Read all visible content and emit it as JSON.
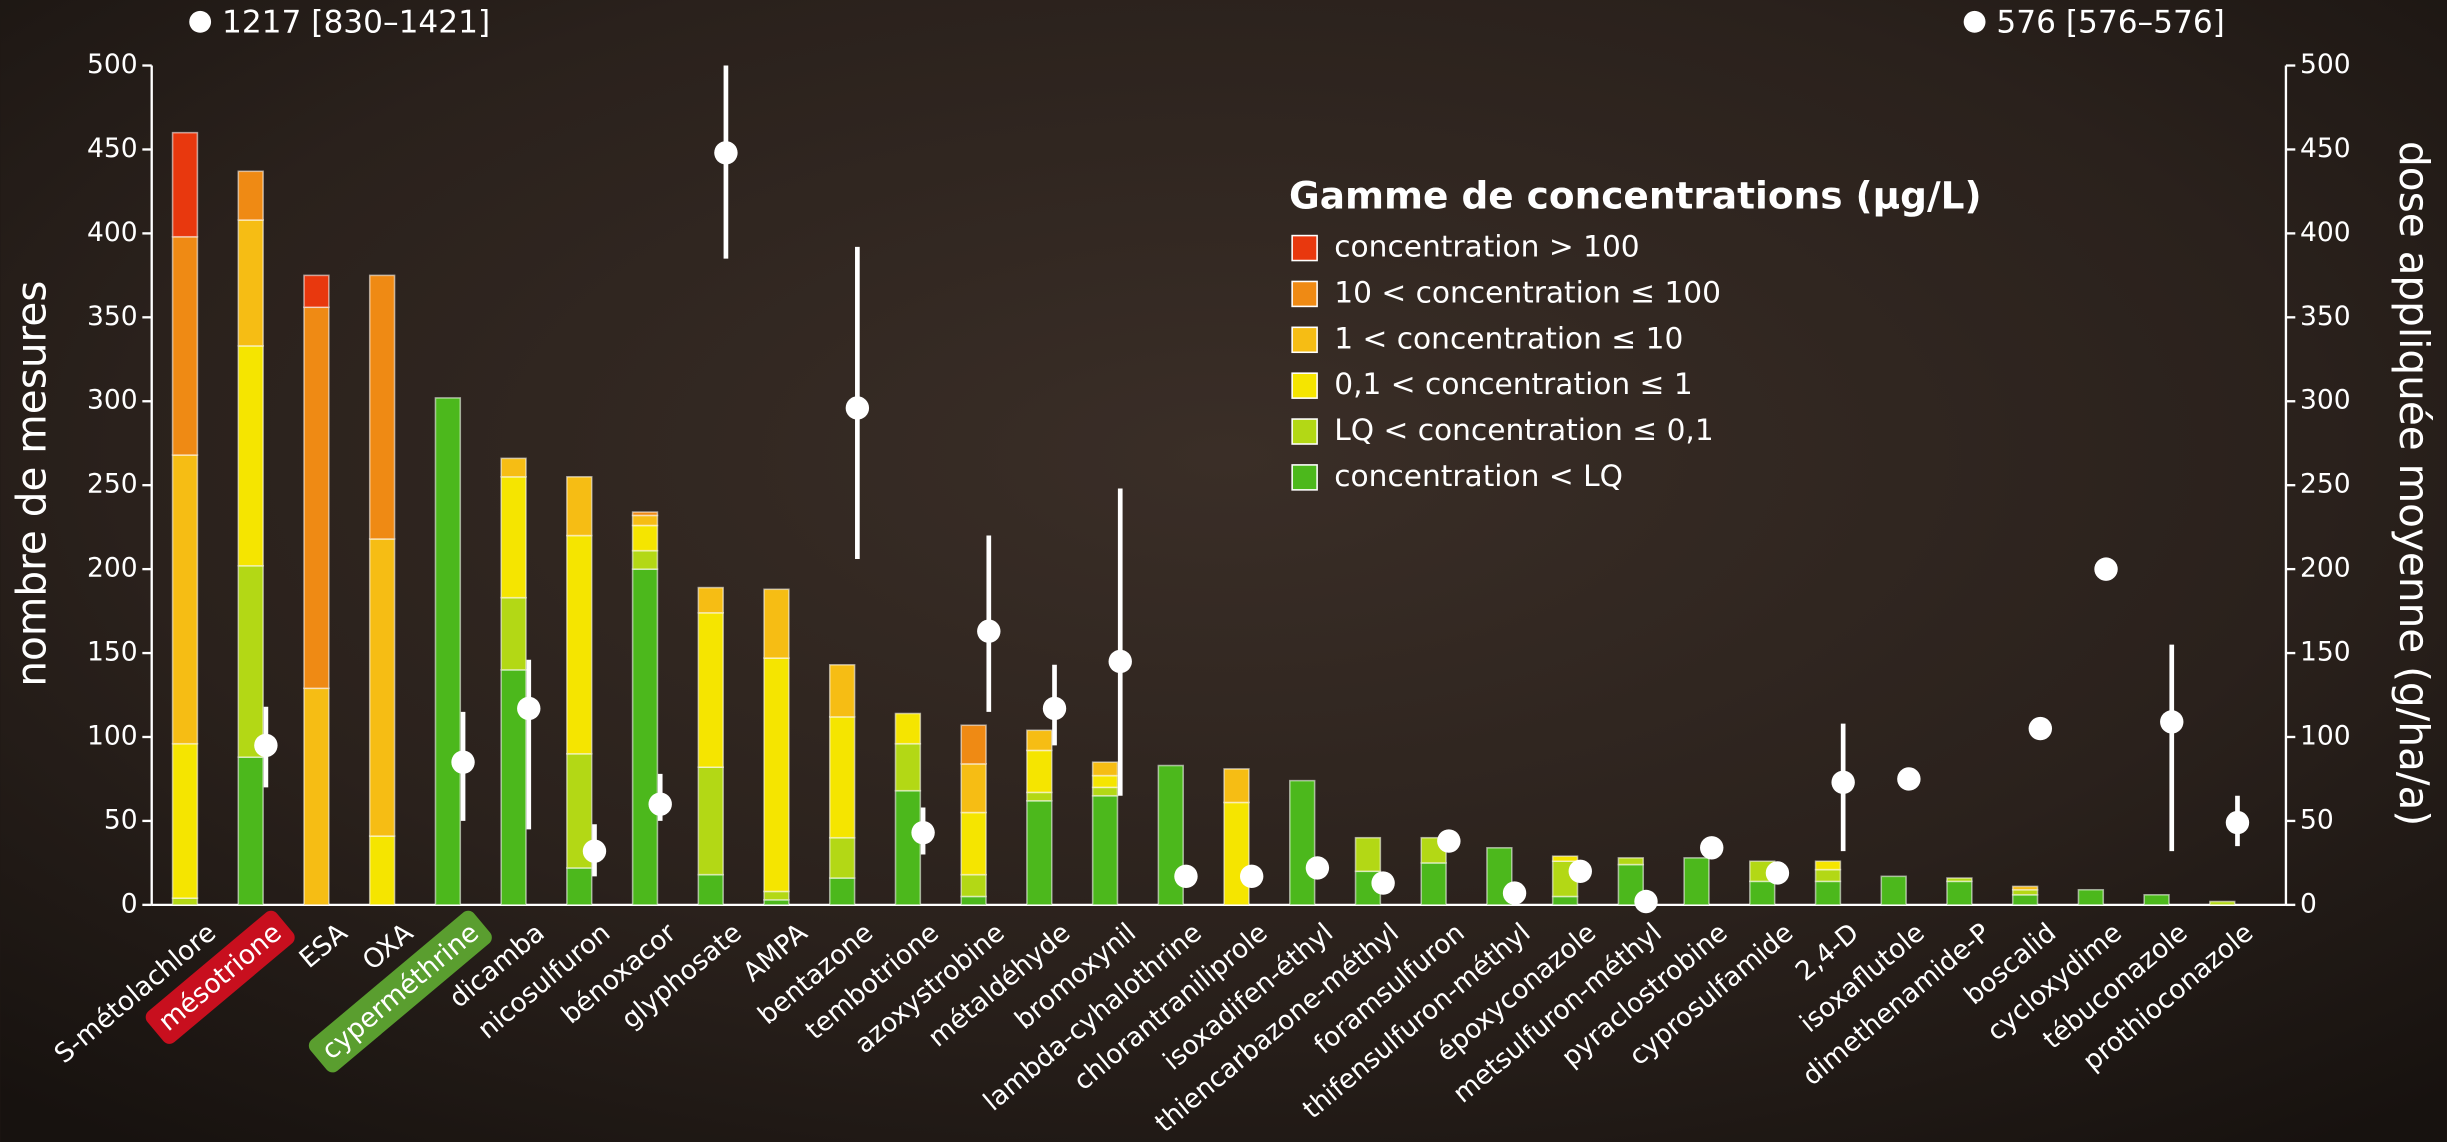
{
  "chart_data": {
    "type": "stacked-bar",
    "y_label": "nombre de mesures",
    "y2_label": "dose appliquée moyenne (g/ha/a)",
    "legend_title": "Gamme de concentrations (µg/L)",
    "ylim": [
      0,
      500
    ],
    "yticks": [
      0,
      50,
      100,
      150,
      200,
      250,
      300,
      350,
      400,
      450,
      500
    ],
    "y2lim": [
      0,
      500
    ],
    "y2ticks": [
      0,
      50,
      100,
      150,
      200,
      250,
      300,
      350,
      400,
      450,
      500
    ],
    "categories": [
      "S-métolachlore",
      "mésotrione",
      "ESA",
      "OXA",
      "cyperméthrine",
      "dicamba",
      "nicosulfuron",
      "bénoxacor",
      "glyphosate",
      "AMPA",
      "bentazone",
      "tembotrione",
      "azoxystrobine",
      "métaldéhyde",
      "bromoxynil",
      "lambda-cyhalothrine",
      "chlorantraniliprole",
      "isoxadifen-éthyl",
      "thiencarbazone-méthyl",
      "foramsulfuron",
      "thifensulfuron-méthyl",
      "époxyconazole",
      "metsulfuron-méthyl",
      "pyraclostrobine",
      "cyprosulfamide",
      "2,4-D",
      "isoxaflutole",
      "dimethenamide-P",
      "boscalid",
      "cycloxydime",
      "tébuconazole",
      "prothioconazole"
    ],
    "series": [
      {
        "name": "concentration < LQ",
        "color": "#4cb81c",
        "values": [
          0,
          88,
          0,
          0,
          302,
          140,
          22,
          200,
          18,
          3,
          16,
          68,
          5,
          62,
          65,
          83,
          0,
          74,
          20,
          25,
          34,
          5,
          24,
          28,
          14,
          14,
          17,
          14,
          6,
          9,
          6,
          0
        ]
      },
      {
        "name": "LQ < concentration ≤ 0,1",
        "color": "#b3d815",
        "values": [
          4,
          114,
          0,
          0,
          0,
          43,
          68,
          11,
          64,
          5,
          24,
          28,
          13,
          5,
          5,
          0,
          0,
          0,
          20,
          15,
          0,
          21,
          4,
          0,
          12,
          7,
          0,
          2,
          3,
          0,
          0,
          2
        ]
      },
      {
        "name": "0,1 < concentration ≤ 1",
        "color": "#f5e500",
        "values": [
          92,
          131,
          0,
          41,
          0,
          72,
          130,
          15,
          92,
          139,
          72,
          18,
          37,
          25,
          7,
          0,
          61,
          0,
          0,
          0,
          0,
          3,
          0,
          0,
          0,
          5,
          0,
          0,
          0,
          0,
          0,
          0
        ]
      },
      {
        "name": "1 < concentration ≤ 10",
        "color": "#f6bd14",
        "values": [
          172,
          75,
          129,
          177,
          0,
          11,
          35,
          6,
          15,
          41,
          31,
          0,
          29,
          12,
          8,
          0,
          20,
          0,
          0,
          0,
          0,
          0,
          0,
          0,
          0,
          0,
          0,
          0,
          2,
          0,
          0,
          0
        ]
      },
      {
        "name": "10 < concentration ≤ 100",
        "color": "#ef8a14",
        "values": [
          130,
          29,
          227,
          157,
          0,
          0,
          0,
          2,
          0,
          0,
          0,
          0,
          23,
          0,
          0,
          0,
          0,
          0,
          0,
          0,
          0,
          0,
          0,
          0,
          0,
          0,
          0,
          0,
          0,
          0,
          0,
          0
        ]
      },
      {
        "name": "concentration > 100",
        "color": "#e8380e",
        "values": [
          62,
          0,
          19,
          0,
          0,
          0,
          0,
          0,
          0,
          0,
          0,
          0,
          0,
          0,
          0,
          0,
          0,
          0,
          0,
          0,
          0,
          0,
          0,
          0,
          0,
          0,
          0,
          0,
          0,
          0,
          0,
          0
        ]
      }
    ],
    "dose": {
      "axis": "y2",
      "color": "#ffffff",
      "values": [
        null,
        95,
        null,
        null,
        85,
        117,
        32,
        60,
        448,
        null,
        296,
        43,
        163,
        117,
        145,
        17,
        17,
        22,
        13,
        38,
        7,
        20,
        2,
        34,
        19,
        73,
        75,
        null,
        105,
        200,
        109,
        49
      ],
      "low": [
        null,
        70,
        null,
        null,
        50,
        45,
        17,
        50,
        385,
        null,
        206,
        30,
        115,
        95,
        65,
        null,
        null,
        null,
        null,
        null,
        null,
        null,
        null,
        null,
        null,
        32,
        null,
        null,
        null,
        null,
        32,
        35
      ],
      "high": [
        null,
        118,
        null,
        null,
        115,
        146,
        48,
        78,
        500,
        null,
        392,
        58,
        220,
        143,
        248,
        null,
        null,
        null,
        null,
        null,
        null,
        null,
        null,
        null,
        null,
        108,
        null,
        null,
        null,
        null,
        155,
        65
      ]
    },
    "annotations": [
      {
        "category": "S-métolachlore",
        "text": "1217 [830–1421]"
      },
      {
        "category": "dimethenamide-P",
        "text": "576 [576–576]"
      }
    ],
    "label_highlights": [
      {
        "category": "mésotrione",
        "color": "#c80f1e"
      },
      {
        "category": "cyperméthrine",
        "color": "#5a9e2f"
      }
    ]
  }
}
